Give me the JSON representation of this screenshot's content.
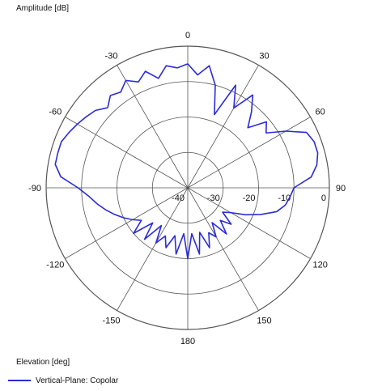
{
  "chart_data": {
    "type": "polar-line",
    "ylabel": "Amplitude [dB]",
    "xlabel": "Elevation [deg]",
    "r_range": [
      -40,
      0
    ],
    "r_ticks": [
      -40,
      -30,
      -20,
      -10,
      0
    ],
    "r_tick_labels": [
      "-40",
      "-30",
      "-20",
      "-10",
      "0"
    ],
    "angle_ticks": [
      0,
      30,
      60,
      90,
      120,
      150,
      180,
      -150,
      -120,
      -90,
      -60,
      -30
    ],
    "angle_tick_labels": [
      "0",
      "-30",
      "-60",
      "-90",
      "-120",
      "-150",
      "180",
      "150",
      "120",
      "90",
      "60",
      "30"
    ],
    "angle_direction": "counterclockwise labels increase to the left (0 at top, 90 at left, -90 at right)",
    "grid": true,
    "legend_position": "bottom-left",
    "series": [
      {
        "name": "Vertical-Plane: Copolar",
        "color": "#2b2bd8",
        "theta_deg": [
          0,
          5,
          10,
          15,
          20,
          25,
          30,
          35,
          40,
          45,
          50,
          55,
          60,
          65,
          70,
          75,
          80,
          85,
          90,
          95,
          100,
          105,
          110,
          115,
          120,
          125,
          130,
          135,
          140,
          145,
          150,
          155,
          160,
          165,
          170,
          175,
          180,
          -175,
          -170,
          -165,
          -160,
          -155,
          -150,
          -145,
          -140,
          -135,
          -130,
          -125,
          -120,
          -115,
          -110,
          -105,
          -100,
          -95,
          -90,
          -85,
          -80,
          -75,
          -70,
          -65,
          -60,
          -55,
          -50,
          -45,
          -40,
          -35,
          -30,
          -25,
          -20,
          -15,
          -10,
          -5,
          0
        ],
        "amplitude_db": [
          -5,
          -6,
          -5,
          -8,
          -5,
          -7,
          -5,
          -7,
          -6,
          -8,
          -6,
          -5,
          -4,
          -3,
          -2,
          -2,
          -2,
          -4,
          -9,
          -12,
          -14,
          -16,
          -18,
          -20,
          -22,
          -24,
          -20,
          -26,
          -21,
          -27,
          -22,
          -25,
          -22,
          -26,
          -21,
          -27,
          -20,
          -27,
          -21,
          -27,
          -22,
          -26,
          -24,
          -28,
          -23,
          -27,
          -24,
          -28,
          -26,
          -22,
          -18,
          -14,
          -12,
          -11,
          -10,
          -5,
          -3,
          -2,
          -2,
          -3,
          -8,
          -13,
          -11,
          -16,
          -12,
          -8,
          -14,
          -8,
          -18,
          -10,
          -5,
          -8,
          -5
        ]
      }
    ]
  }
}
